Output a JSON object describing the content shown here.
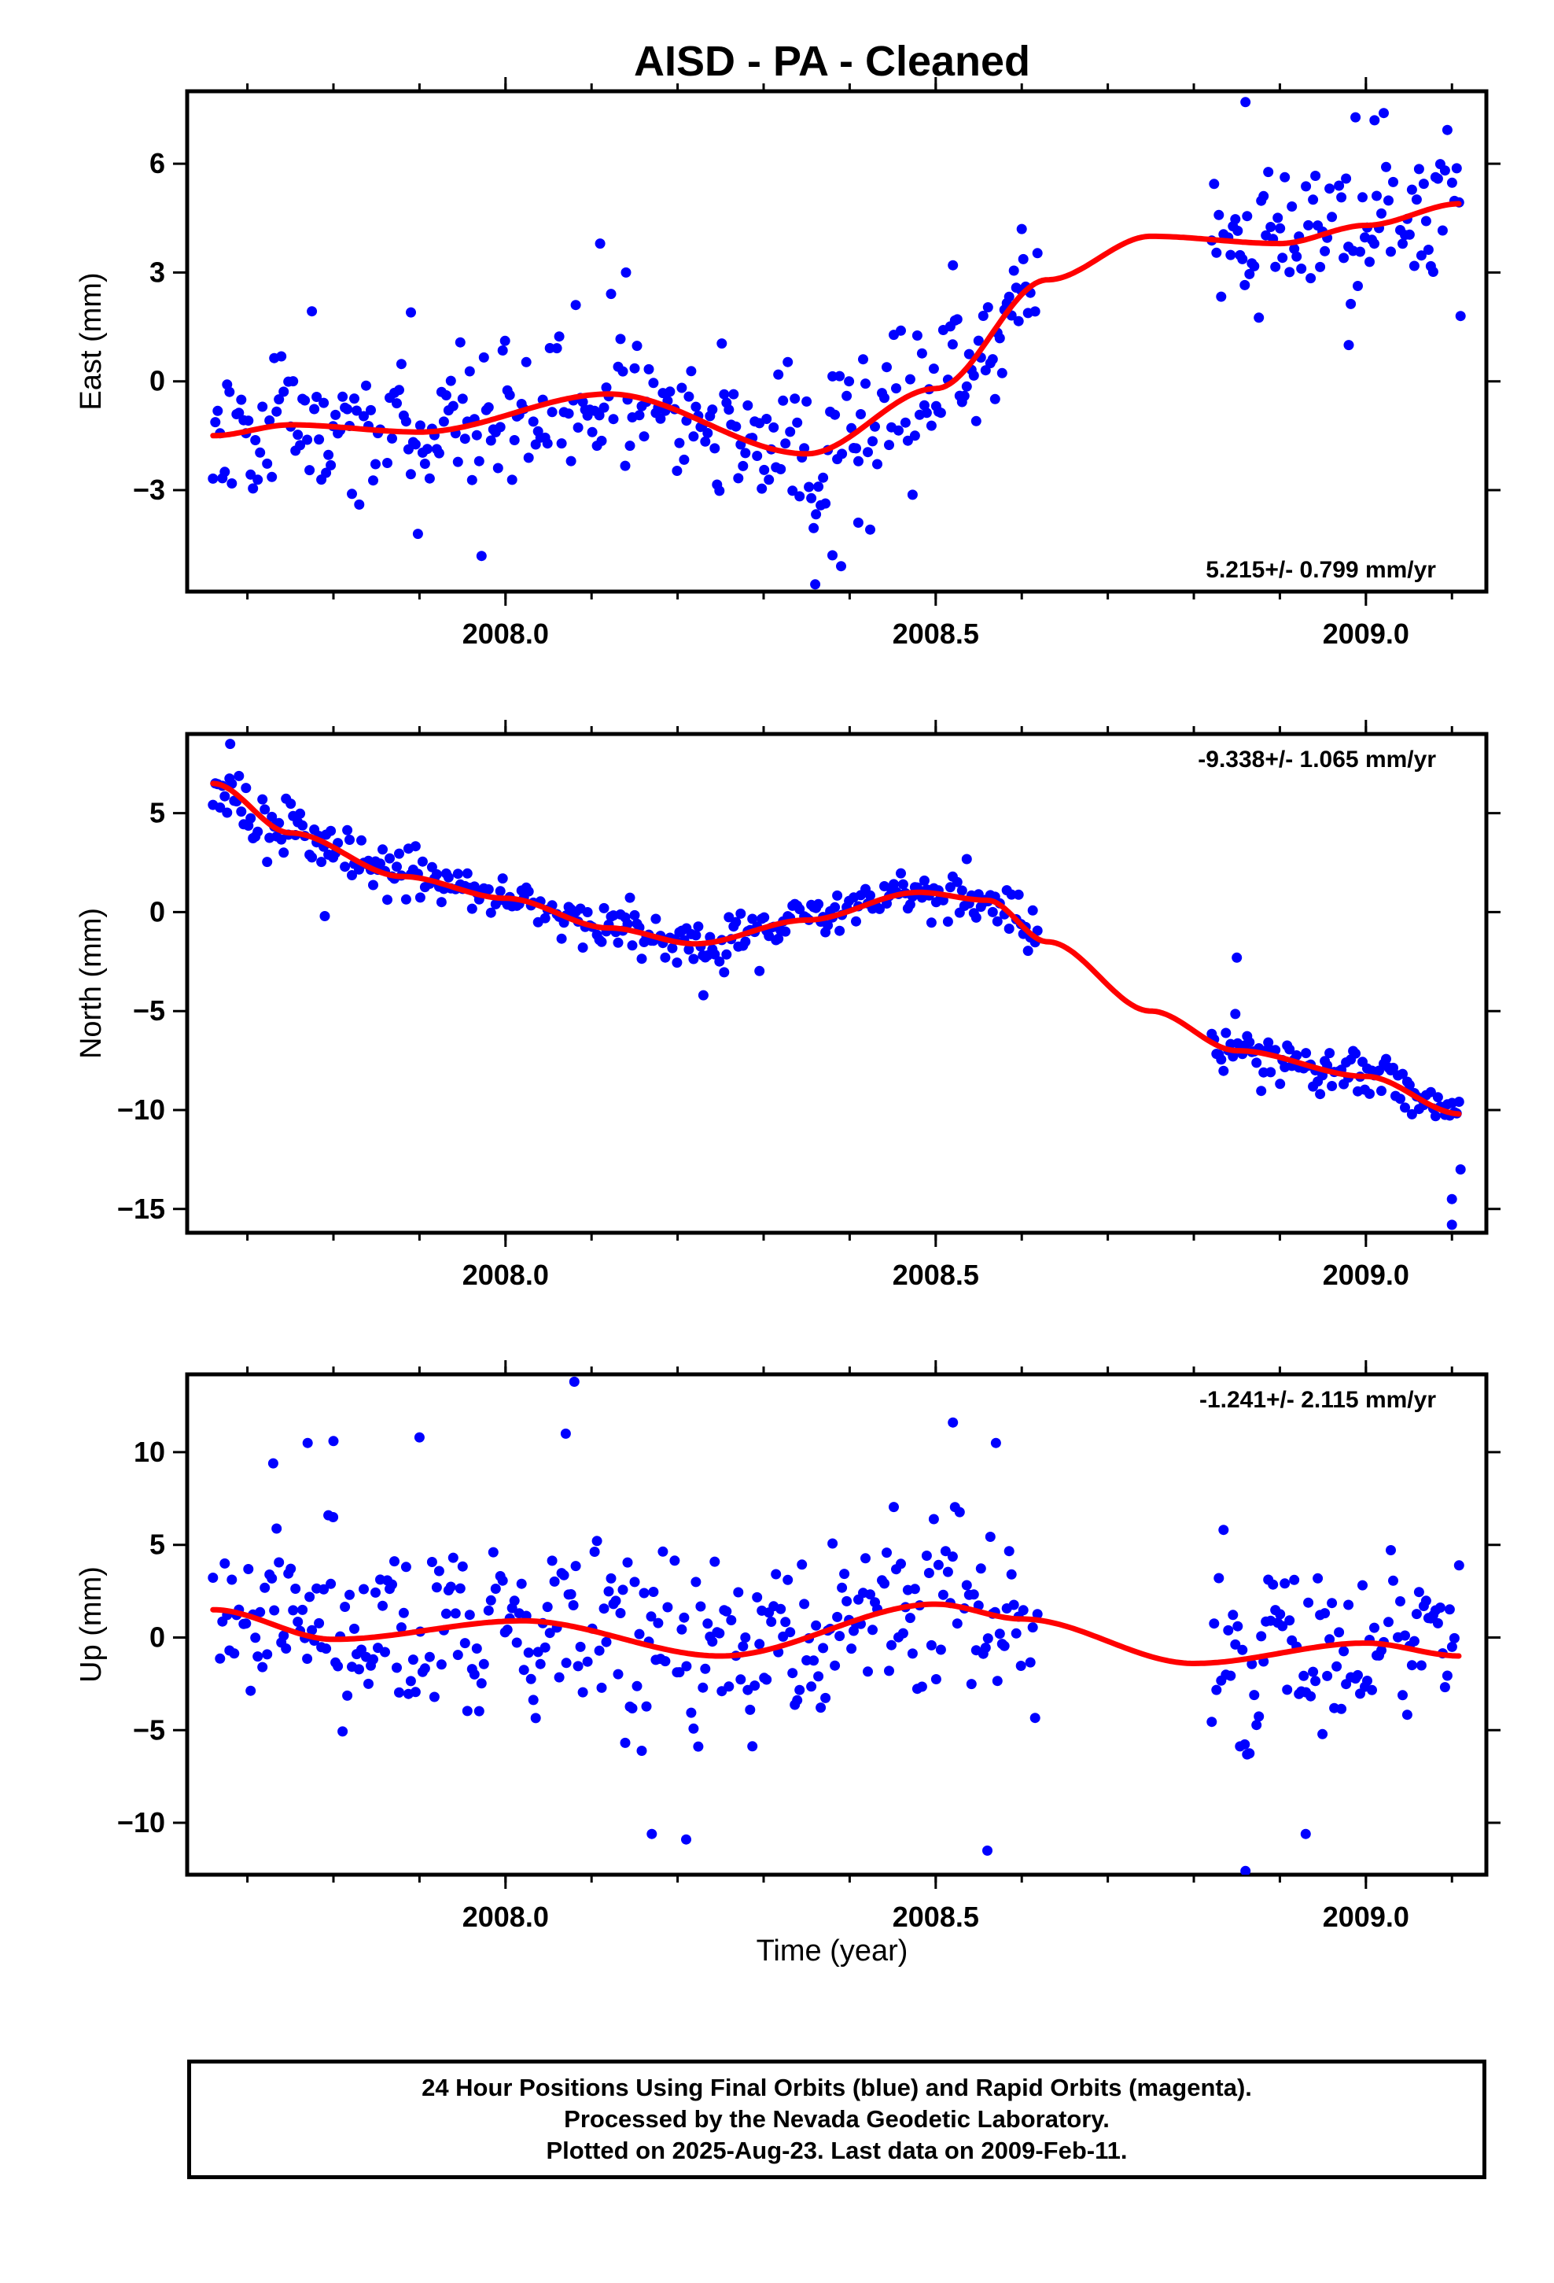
{
  "title": "AISD  - PA - Cleaned",
  "x_axis_label": "Time (year)",
  "footer": {
    "line1": "24 Hour Positions Using Final Orbits (blue) and Rapid Orbits (magenta).",
    "line2": "Processed by the Nevada Geodetic Laboratory.",
    "line3": "Plotted on 2025-Aug-23. Last data on 2009-Feb-11."
  },
  "colors": {
    "points": "#0000ff",
    "fit": "#ff0000",
    "frame": "#000000"
  },
  "chart_data": [
    {
      "type": "scatter",
      "ylabel": "East (mm)",
      "rate": "5.215+/- 0.799 mm/yr",
      "xlim": [
        2007.63,
        2009.14
      ],
      "ylim": [
        -5.8,
        8.0
      ],
      "xticks": [
        2008.0,
        2008.5,
        2009.0
      ],
      "xtick_labels": [
        "2008.0",
        "2008.5",
        "2009.0"
      ],
      "yticks": [
        -3,
        0,
        3,
        6
      ],
      "ytick_labels": [
        "−3",
        "0",
        "3",
        "6"
      ],
      "fit": {
        "x": [
          2007.66,
          2007.75,
          2007.9,
          2008.12,
          2008.35,
          2008.5,
          2008.63,
          2008.75,
          2008.9,
          2009.0,
          2009.11
        ],
        "y": [
          -1.5,
          -1.2,
          -1.4,
          -0.35,
          -2.0,
          -0.2,
          2.8,
          4.0,
          3.8,
          4.3,
          4.9
        ]
      },
      "points": {
        "seed": 11,
        "gaps": [
          [
            2008.62,
            2008.82
          ]
        ],
        "scatter": 1.35,
        "outliers": [
          [
            2007.83,
            -3.4
          ],
          [
            2007.89,
            1.9
          ],
          [
            2008.11,
            3.8
          ],
          [
            2008.14,
            3.0
          ],
          [
            2008.36,
            -5.6
          ],
          [
            2008.38,
            -4.8
          ],
          [
            2008.39,
            -5.1
          ],
          [
            2008.41,
            -3.9
          ],
          [
            2008.52,
            3.2
          ],
          [
            2008.6,
            4.2
          ],
          [
            2008.86,
            7.7
          ],
          [
            2008.98,
            1.0
          ],
          [
            2009.01,
            7.2
          ],
          [
            2009.11,
            1.8
          ]
        ]
      }
    },
    {
      "type": "scatter",
      "ylabel": "North (mm)",
      "rate": "-9.338+/- 1.065 mm/yr",
      "xlim": [
        2007.63,
        2009.14
      ],
      "ylim": [
        -16.2,
        9.0
      ],
      "xticks": [
        2008.0,
        2008.5,
        2009.0
      ],
      "xtick_labels": [
        "2008.0",
        "2008.5",
        "2009.0"
      ],
      "yticks": [
        -15,
        -10,
        -5,
        0,
        5
      ],
      "ytick_labels": [
        "−15",
        "−10",
        "−5",
        "0",
        "5"
      ],
      "fit": {
        "x": [
          2007.66,
          2007.75,
          2007.88,
          2008.0,
          2008.12,
          2008.22,
          2008.35,
          2008.48,
          2008.56,
          2008.63,
          2008.75,
          2008.85,
          2009.0,
          2009.11
        ],
        "y": [
          6.5,
          4.0,
          1.8,
          0.7,
          -0.8,
          -1.6,
          -0.4,
          1.0,
          0.6,
          -1.5,
          -5.0,
          -7.0,
          -8.3,
          -10.2
        ]
      },
      "points": {
        "seed": 23,
        "gaps": [
          [
            2008.62,
            2008.82
          ]
        ],
        "scatter": 0.85,
        "outliers": [
          [
            2007.68,
            8.5
          ],
          [
            2007.79,
            -0.2
          ],
          [
            2008.23,
            -4.2
          ],
          [
            2008.85,
            -2.3
          ],
          [
            2009.1,
            -15.8
          ],
          [
            2009.1,
            -14.5
          ],
          [
            2009.11,
            -13.0
          ]
        ]
      }
    },
    {
      "type": "scatter",
      "ylabel": "Up (mm)",
      "rate": "-1.241+/- 2.115 mm/yr",
      "xlim": [
        2007.63,
        2009.14
      ],
      "ylim": [
        -12.8,
        14.2
      ],
      "xticks": [
        2008.0,
        2008.5,
        2009.0
      ],
      "xtick_labels": [
        "2008.0",
        "2008.5",
        "2009.0"
      ],
      "yticks": [
        -10,
        -5,
        0,
        5,
        10
      ],
      "ytick_labels": [
        "−10",
        "−5",
        "0",
        "5",
        "10"
      ],
      "fit": {
        "x": [
          2007.66,
          2007.8,
          2008.02,
          2008.25,
          2008.5,
          2008.6,
          2008.8,
          2009.0,
          2009.11
        ],
        "y": [
          1.5,
          -0.1,
          0.9,
          -1.0,
          1.8,
          1.0,
          -1.4,
          -0.3,
          -1.0
        ]
      },
      "points": {
        "seed": 37,
        "gaps": [
          [
            2008.62,
            2008.82
          ]
        ],
        "scatter": 3.2,
        "outliers": [
          [
            2007.73,
            9.4
          ],
          [
            2007.77,
            10.5
          ],
          [
            2007.8,
            10.6
          ],
          [
            2007.9,
            10.8
          ],
          [
            2008.07,
            11.0
          ],
          [
            2008.08,
            13.8
          ],
          [
            2008.17,
            -10.6
          ],
          [
            2008.21,
            -10.9
          ],
          [
            2008.52,
            11.6
          ],
          [
            2008.57,
            10.5
          ],
          [
            2008.56,
            -11.5
          ],
          [
            2008.86,
            -12.6
          ],
          [
            2008.93,
            -10.6
          ]
        ]
      }
    }
  ]
}
